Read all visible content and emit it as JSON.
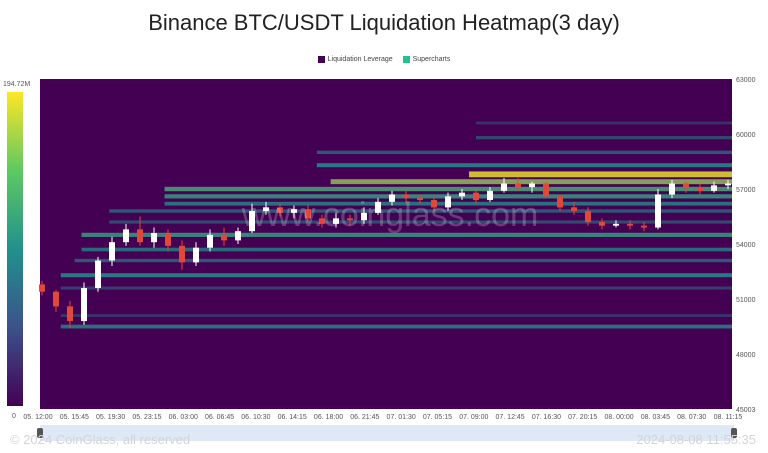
{
  "page": {
    "title": "Binance BTC/USDT Liquidation Heatmap(3 day)",
    "copyright": "© 2024 CoinGlass, all reserved",
    "timestamp": "2024-08-08 11:55:35",
    "watermark": "www.coinglass.com"
  },
  "legend": [
    {
      "label": "Liquidation Leverage",
      "color": "#440154"
    },
    {
      "label": "Supercharts",
      "color": "#21c28b"
    }
  ],
  "colors": {
    "heatmap_low": "#440154",
    "heatmap_mid": "#21918c",
    "heatmap_high": "#fde725",
    "candle_up": "#ffffff",
    "candle_down": "#e0483c"
  },
  "chart_data": {
    "type": "heatmap",
    "title": "Binance BTC/USDT Liquidation Heatmap(3 day)",
    "y_axis": {
      "side": "right",
      "ticks": [
        45003,
        48000,
        51000,
        54000,
        57000,
        60000,
        63000
      ],
      "ylim": [
        45003,
        63000
      ]
    },
    "x_axis": {
      "ticks": [
        "05. 12:00",
        "05. 15:45",
        "05. 19:30",
        "05. 23:15",
        "06. 03:00",
        "06. 06:45",
        "06. 10:30",
        "06. 14:15",
        "06. 18:00",
        "06. 21:45",
        "07. 01:30",
        "07. 05:15",
        "07. 09:00",
        "07. 12:45",
        "07. 16:30",
        "07. 20:15",
        "08. 00:00",
        "08. 03:45",
        "08. 07:30",
        "08. 11:15"
      ]
    },
    "colorbar": {
      "max_label": "194.72M",
      "min_label": "0"
    },
    "bands": [
      {
        "price": 49500,
        "intensity": 0.45,
        "start": 0.03
      },
      {
        "price": 50100,
        "intensity": 0.22,
        "start": 0.03
      },
      {
        "price": 51600,
        "intensity": 0.25,
        "start": 0.03
      },
      {
        "price": 52300,
        "intensity": 0.5,
        "start": 0.03
      },
      {
        "price": 53100,
        "intensity": 0.35,
        "start": 0.05
      },
      {
        "price": 53700,
        "intensity": 0.42,
        "start": 0.06
      },
      {
        "price": 54500,
        "intensity": 0.55,
        "start": 0.06
      },
      {
        "price": 55200,
        "intensity": 0.3,
        "start": 0.1
      },
      {
        "price": 55800,
        "intensity": 0.35,
        "start": 0.1
      },
      {
        "price": 56200,
        "intensity": 0.45,
        "start": 0.18
      },
      {
        "price": 56600,
        "intensity": 0.55,
        "start": 0.18
      },
      {
        "price": 57000,
        "intensity": 0.6,
        "start": 0.18
      },
      {
        "price": 57400,
        "intensity": 0.75,
        "start": 0.42
      },
      {
        "price": 57800,
        "intensity": 0.95,
        "start": 0.62
      },
      {
        "price": 58300,
        "intensity": 0.5,
        "start": 0.4
      },
      {
        "price": 59000,
        "intensity": 0.35,
        "start": 0.4
      },
      {
        "price": 59800,
        "intensity": 0.3,
        "start": 0.63
      },
      {
        "price": 60600,
        "intensity": 0.2,
        "start": 0.63
      }
    ],
    "candles": [
      [
        51800,
        51400,
        52000,
        51200
      ],
      [
        51400,
        50600,
        51500,
        50300
      ],
      [
        50600,
        49800,
        50900,
        49400
      ],
      [
        49800,
        51600,
        51900,
        49600
      ],
      [
        51600,
        53100,
        53300,
        51400
      ],
      [
        53100,
        54100,
        54400,
        52800
      ],
      [
        54100,
        54800,
        55100,
        53900
      ],
      [
        54800,
        54100,
        55500,
        53900
      ],
      [
        54100,
        54600,
        54900,
        53800
      ],
      [
        54600,
        53900,
        54800,
        53600
      ],
      [
        53900,
        53000,
        54200,
        52600
      ],
      [
        53000,
        53800,
        54100,
        52800
      ],
      [
        53800,
        54500,
        54800,
        53600
      ],
      [
        54500,
        54200,
        54900,
        53900
      ],
      [
        54200,
        54700,
        54900,
        54000
      ],
      [
        54700,
        55800,
        56200,
        54600
      ],
      [
        55800,
        56000,
        56300,
        55600
      ],
      [
        56000,
        55700,
        56200,
        55500
      ],
      [
        55700,
        55900,
        56100,
        55400
      ],
      [
        55900,
        55400,
        56100,
        55200
      ],
      [
        55400,
        55100,
        55600,
        54900
      ],
      [
        55100,
        55400,
        55700,
        54900
      ],
      [
        55400,
        55300,
        55600,
        55000
      ],
      [
        55300,
        55700,
        56000,
        55100
      ],
      [
        55700,
        56300,
        56500,
        55600
      ],
      [
        56300,
        56700,
        56900,
        56100
      ],
      [
        56700,
        56500,
        56900,
        56200
      ],
      [
        56500,
        56400,
        56700,
        56200
      ],
      [
        56400,
        56000,
        56500,
        55800
      ],
      [
        56000,
        56600,
        56800,
        55800
      ],
      [
        56600,
        56800,
        57000,
        56400
      ],
      [
        56800,
        56400,
        56900,
        56200
      ],
      [
        56400,
        56900,
        57100,
        56300
      ],
      [
        56900,
        57300,
        57600,
        56800
      ],
      [
        57300,
        57100,
        57600,
        56900
      ],
      [
        57100,
        57300,
        57400,
        56800
      ],
      [
        57300,
        56600,
        57400,
        56500
      ],
      [
        56600,
        56000,
        56700,
        55800
      ],
      [
        56000,
        55800,
        56300,
        55600
      ],
      [
        55800,
        55200,
        56000,
        55000
      ],
      [
        55200,
        55000,
        55400,
        54800
      ],
      [
        55000,
        55100,
        55300,
        54900
      ],
      [
        55100,
        55000,
        55300,
        54800
      ],
      [
        55000,
        54900,
        55200,
        54700
      ],
      [
        54900,
        56700,
        57000,
        54800
      ],
      [
        56700,
        57300,
        57500,
        56500
      ],
      [
        57300,
        57100,
        57400,
        56800
      ],
      [
        57100,
        56900,
        57300,
        56700
      ],
      [
        56900,
        57200,
        57400,
        56800
      ],
      [
        57200,
        57300,
        57500,
        57000
      ]
    ]
  }
}
